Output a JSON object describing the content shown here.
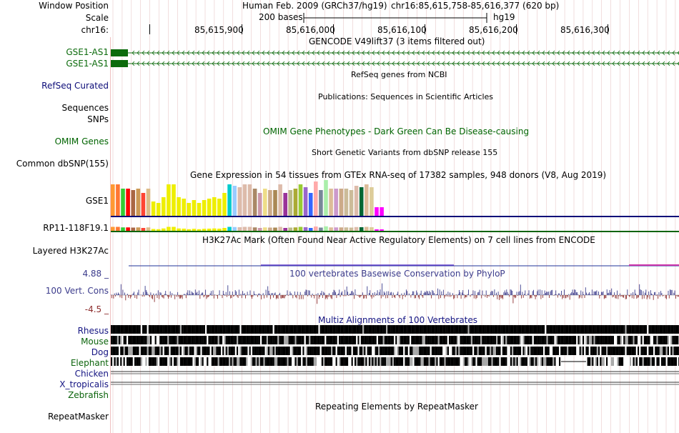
{
  "header": {
    "window_position_label": "Window Position",
    "assembly": "Human Feb. 2009 (GRCh37/hg19)",
    "position": "chr16:85,615,758-85,616,377 (620 bp)",
    "scale_label": "Scale",
    "scale_text": "200 bases",
    "scale_db": "hg19",
    "chrom_label": "chr16:",
    "ticks": [
      "85,615,900",
      "85,616,000",
      "85,616,100",
      "85,616,200",
      "85,616,300"
    ]
  },
  "tracks": {
    "gencode": {
      "title": "GENCODE V49lift37 (3 items filtered out)",
      "items": [
        "GSE1-AS1",
        "GSE1-AS1"
      ]
    },
    "refseq": {
      "title": "RefSeq genes from NCBI",
      "label": "RefSeq Curated"
    },
    "publications": {
      "title": "Publications: Sequences in Scientific Articles",
      "label1": "Sequences",
      "label2": "SNPs"
    },
    "omim": {
      "title": "OMIM Gene Phenotypes - Dark Green Can Be Disease-causing",
      "label": "OMIM Genes"
    },
    "dbsnp": {
      "title": "Short Genetic Variants from dbSNP release 155",
      "label": "Common dbSNP(155)"
    },
    "gtex": {
      "title": "Gene Expression in 54 tissues from GTEx RNA-seq of 17382 samples, 948 donors (V8, Aug 2019)",
      "gene1": "GSE1",
      "gene2": "RP11-118F19.1"
    },
    "h3k27ac": {
      "title": "H3K27Ac Mark (Often Found Near Active Regulatory Elements) on 7 cell lines from ENCODE",
      "label": "Layered H3K27Ac"
    },
    "phylop": {
      "title": "100 vertebrates Basewise Conservation by PhyloP",
      "label": "100 Vert. Cons",
      "max": "4.88 _",
      "min": "-4.5 _"
    },
    "multiz": {
      "title": "Multiz Alignments of 100 Vertebrates",
      "species": [
        "Rhesus",
        "Mouse",
        "Dog",
        "Elephant",
        "Chicken",
        "X_tropicalis",
        "Zebrafish"
      ]
    },
    "repeatmasker": {
      "title": "Repeating Elements by RepeatMasker",
      "label": "RepeatMasker"
    }
  },
  "colors": {
    "gencode": "#0c6b0c",
    "refseq": "#0c0c78",
    "omim": "#006400",
    "phylop": "#3c3c8c",
    "phylop_neg": "#8c2c2c",
    "multiz_title": "#141482",
    "species": [
      "#141482",
      "#0c640c",
      "#141482",
      "#0c640c",
      "#141482",
      "#141482",
      "#0c640c"
    ],
    "gridline": "#e8c8c8"
  },
  "gtex_tissue_colors": [
    "#ff9933",
    "#ff7733",
    "#33cc33",
    "#ff0000",
    "#aa6644",
    "#cc9955",
    "#ff4433",
    "#ddbb88",
    "#eeee00",
    "#eeee00",
    "#eeee00",
    "#eeee00",
    "#eeee00",
    "#eeee00",
    "#eeee00",
    "#eeee00",
    "#eeee00",
    "#eeee00",
    "#eeee00",
    "#eeee00",
    "#eeee00",
    "#eeee00",
    "#eeee00",
    "#00cccc",
    "#99ccff",
    "#ddbbaa",
    "#ddbbaa",
    "#ddbbaa",
    "#aa8866",
    "#cc99aa",
    "#eedd88",
    "#ccaa88",
    "#aa8855",
    "#ddbbaa",
    "#993399",
    "#bbbb88",
    "#aaaa33",
    "#99cc33",
    "#9966cc",
    "#3366ff",
    "#ffaaaa",
    "#778899",
    "#aaeeaa",
    "#ddbb99",
    "#cc99cc",
    "#ccaa88",
    "#ccbb99",
    "#ccbb99",
    "#ddbbaa",
    "#006633",
    "#ddbb99",
    "#ddcc99",
    "#ff00ff",
    "#ff00ff"
  ]
}
